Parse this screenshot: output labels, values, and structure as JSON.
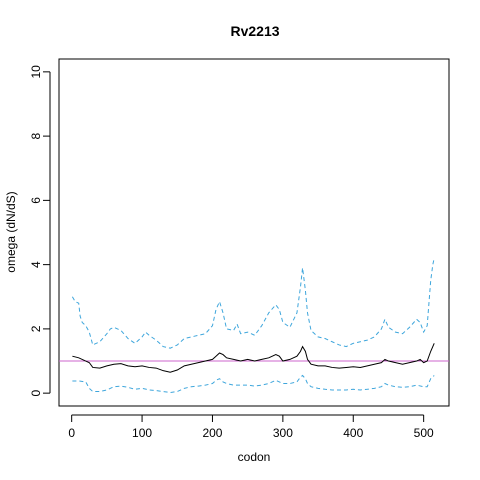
{
  "chart_data": {
    "type": "line",
    "title": "Rv2213",
    "xlabel": "codon",
    "ylabel": "omega (dN/dS)",
    "xlim": [
      -18,
      536
    ],
    "ylim": [
      -0.4,
      10.4
    ],
    "xticks": [
      0,
      100,
      200,
      300,
      400,
      500
    ],
    "yticks": [
      0,
      2,
      4,
      6,
      8,
      10
    ],
    "grid": false,
    "reference_line": {
      "y": 1.0,
      "color": "#cc66cc"
    },
    "series": [
      {
        "role": "estimate",
        "color": "#000000",
        "dash": "solid",
        "points": [
          [
            1,
            1.15
          ],
          [
            10,
            1.1
          ],
          [
            20,
            1.0
          ],
          [
            25,
            0.95
          ],
          [
            30,
            0.8
          ],
          [
            40,
            0.78
          ],
          [
            50,
            0.85
          ],
          [
            60,
            0.9
          ],
          [
            70,
            0.92
          ],
          [
            80,
            0.85
          ],
          [
            90,
            0.82
          ],
          [
            100,
            0.85
          ],
          [
            110,
            0.8
          ],
          [
            120,
            0.78
          ],
          [
            130,
            0.7
          ],
          [
            140,
            0.65
          ],
          [
            150,
            0.72
          ],
          [
            160,
            0.85
          ],
          [
            170,
            0.9
          ],
          [
            180,
            0.95
          ],
          [
            190,
            1.0
          ],
          [
            200,
            1.05
          ],
          [
            205,
            1.15
          ],
          [
            210,
            1.25
          ],
          [
            215,
            1.2
          ],
          [
            220,
            1.1
          ],
          [
            230,
            1.05
          ],
          [
            240,
            1.0
          ],
          [
            250,
            1.05
          ],
          [
            260,
            1.0
          ],
          [
            270,
            1.05
          ],
          [
            280,
            1.1
          ],
          [
            290,
            1.2
          ],
          [
            295,
            1.15
          ],
          [
            300,
            1.0
          ],
          [
            310,
            1.05
          ],
          [
            320,
            1.15
          ],
          [
            325,
            1.3
          ],
          [
            328,
            1.45
          ],
          [
            332,
            1.3
          ],
          [
            335,
            1.05
          ],
          [
            340,
            0.9
          ],
          [
            350,
            0.85
          ],
          [
            360,
            0.85
          ],
          [
            370,
            0.8
          ],
          [
            380,
            0.78
          ],
          [
            390,
            0.8
          ],
          [
            400,
            0.82
          ],
          [
            410,
            0.8
          ],
          [
            420,
            0.85
          ],
          [
            430,
            0.9
          ],
          [
            440,
            0.95
          ],
          [
            445,
            1.05
          ],
          [
            450,
            1.0
          ],
          [
            460,
            0.95
          ],
          [
            470,
            0.9
          ],
          [
            480,
            0.95
          ],
          [
            490,
            1.0
          ],
          [
            495,
            1.05
          ],
          [
            500,
            0.95
          ],
          [
            505,
            1.0
          ],
          [
            510,
            1.3
          ],
          [
            515,
            1.55
          ]
        ]
      },
      {
        "role": "upper",
        "color": "#3ea6dc",
        "dash": "dashed",
        "points": [
          [
            1,
            3.0
          ],
          [
            5,
            2.85
          ],
          [
            10,
            2.8
          ],
          [
            12,
            2.4
          ],
          [
            15,
            2.2
          ],
          [
            20,
            2.1
          ],
          [
            25,
            1.9
          ],
          [
            30,
            1.5
          ],
          [
            35,
            1.55
          ],
          [
            40,
            1.6
          ],
          [
            50,
            1.85
          ],
          [
            55,
            2.0
          ],
          [
            60,
            2.05
          ],
          [
            70,
            1.95
          ],
          [
            80,
            1.7
          ],
          [
            90,
            1.55
          ],
          [
            100,
            1.75
          ],
          [
            105,
            1.9
          ],
          [
            110,
            1.8
          ],
          [
            120,
            1.65
          ],
          [
            130,
            1.45
          ],
          [
            140,
            1.4
          ],
          [
            150,
            1.5
          ],
          [
            160,
            1.7
          ],
          [
            170,
            1.75
          ],
          [
            180,
            1.8
          ],
          [
            190,
            1.85
          ],
          [
            200,
            2.1
          ],
          [
            205,
            2.6
          ],
          [
            210,
            2.85
          ],
          [
            215,
            2.5
          ],
          [
            220,
            2.0
          ],
          [
            230,
            1.95
          ],
          [
            235,
            2.15
          ],
          [
            240,
            1.85
          ],
          [
            250,
            1.9
          ],
          [
            260,
            1.8
          ],
          [
            270,
            2.1
          ],
          [
            280,
            2.5
          ],
          [
            290,
            2.75
          ],
          [
            295,
            2.6
          ],
          [
            300,
            2.2
          ],
          [
            310,
            2.05
          ],
          [
            320,
            2.5
          ],
          [
            325,
            3.3
          ],
          [
            328,
            3.9
          ],
          [
            332,
            3.2
          ],
          [
            335,
            2.5
          ],
          [
            340,
            1.95
          ],
          [
            350,
            1.75
          ],
          [
            360,
            1.7
          ],
          [
            370,
            1.6
          ],
          [
            380,
            1.5
          ],
          [
            390,
            1.45
          ],
          [
            400,
            1.55
          ],
          [
            410,
            1.6
          ],
          [
            420,
            1.65
          ],
          [
            430,
            1.75
          ],
          [
            440,
            2.0
          ],
          [
            445,
            2.3
          ],
          [
            450,
            2.05
          ],
          [
            460,
            1.9
          ],
          [
            470,
            1.85
          ],
          [
            480,
            2.05
          ],
          [
            490,
            2.3
          ],
          [
            495,
            2.2
          ],
          [
            500,
            1.9
          ],
          [
            505,
            2.1
          ],
          [
            510,
            3.5
          ],
          [
            513,
            4.0
          ],
          [
            515,
            4.2
          ]
        ]
      },
      {
        "role": "lower",
        "color": "#3ea6dc",
        "dash": "dashed",
        "points": [
          [
            1,
            0.38
          ],
          [
            10,
            0.38
          ],
          [
            20,
            0.35
          ],
          [
            25,
            0.15
          ],
          [
            30,
            0.05
          ],
          [
            40,
            0.05
          ],
          [
            50,
            0.1
          ],
          [
            60,
            0.2
          ],
          [
            70,
            0.22
          ],
          [
            80,
            0.18
          ],
          [
            90,
            0.12
          ],
          [
            100,
            0.15
          ],
          [
            110,
            0.1
          ],
          [
            120,
            0.08
          ],
          [
            130,
            0.05
          ],
          [
            140,
            0.02
          ],
          [
            150,
            0.05
          ],
          [
            160,
            0.15
          ],
          [
            170,
            0.2
          ],
          [
            180,
            0.22
          ],
          [
            190,
            0.25
          ],
          [
            200,
            0.3
          ],
          [
            205,
            0.4
          ],
          [
            210,
            0.45
          ],
          [
            215,
            0.35
          ],
          [
            220,
            0.3
          ],
          [
            230,
            0.25
          ],
          [
            240,
            0.25
          ],
          [
            250,
            0.25
          ],
          [
            260,
            0.22
          ],
          [
            270,
            0.25
          ],
          [
            280,
            0.3
          ],
          [
            290,
            0.4
          ],
          [
            300,
            0.3
          ],
          [
            310,
            0.3
          ],
          [
            320,
            0.35
          ],
          [
            325,
            0.5
          ],
          [
            328,
            0.55
          ],
          [
            332,
            0.45
          ],
          [
            335,
            0.3
          ],
          [
            340,
            0.2
          ],
          [
            350,
            0.15
          ],
          [
            360,
            0.12
          ],
          [
            370,
            0.1
          ],
          [
            380,
            0.1
          ],
          [
            390,
            0.1
          ],
          [
            400,
            0.12
          ],
          [
            410,
            0.1
          ],
          [
            420,
            0.12
          ],
          [
            430,
            0.15
          ],
          [
            440,
            0.2
          ],
          [
            445,
            0.3
          ],
          [
            450,
            0.25
          ],
          [
            460,
            0.2
          ],
          [
            470,
            0.18
          ],
          [
            480,
            0.2
          ],
          [
            490,
            0.25
          ],
          [
            500,
            0.2
          ],
          [
            505,
            0.2
          ],
          [
            510,
            0.45
          ],
          [
            515,
            0.55
          ]
        ]
      }
    ]
  }
}
